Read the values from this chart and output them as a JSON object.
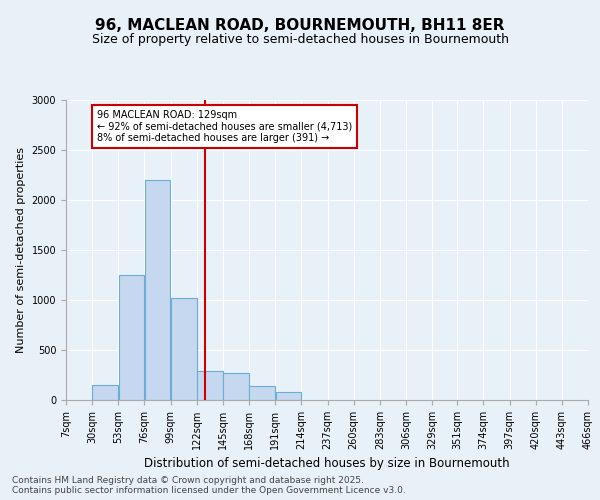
{
  "title1": "96, MACLEAN ROAD, BOURNEMOUTH, BH11 8ER",
  "title2": "Size of property relative to semi-detached houses in Bournemouth",
  "xlabel": "Distribution of semi-detached houses by size in Bournemouth",
  "ylabel": "Number of semi-detached properties",
  "footnote": "Contains HM Land Registry data © Crown copyright and database right 2025.\nContains public sector information licensed under the Open Government Licence v3.0.",
  "bin_edges": [
    7,
    30,
    53,
    76,
    99,
    122,
    145,
    168,
    191,
    214,
    237,
    260,
    283,
    306,
    329,
    351,
    374,
    397,
    420,
    443,
    466
  ],
  "bar_heights": [
    0,
    150,
    1250,
    2200,
    1020,
    290,
    270,
    140,
    80,
    0,
    0,
    0,
    0,
    0,
    0,
    0,
    0,
    0,
    0,
    0
  ],
  "bar_color": "#c5d8ef",
  "bar_edge_color": "#6aaed6",
  "property_size": 129,
  "red_line_color": "#cc0000",
  "annotation_text": "96 MACLEAN ROAD: 129sqm\n← 92% of semi-detached houses are smaller (4,713)\n8% of semi-detached houses are larger (391) →",
  "annotation_box_color": "#ffffff",
  "annotation_border_color": "#cc0000",
  "ylim": [
    0,
    3000
  ],
  "background_color": "#e8f0f8",
  "plot_background": "#e8f0f8",
  "title1_fontsize": 11,
  "title2_fontsize": 9,
  "tick_label_fontsize": 7,
  "ylabel_fontsize": 8,
  "xlabel_fontsize": 8.5,
  "footnote_fontsize": 6.5
}
